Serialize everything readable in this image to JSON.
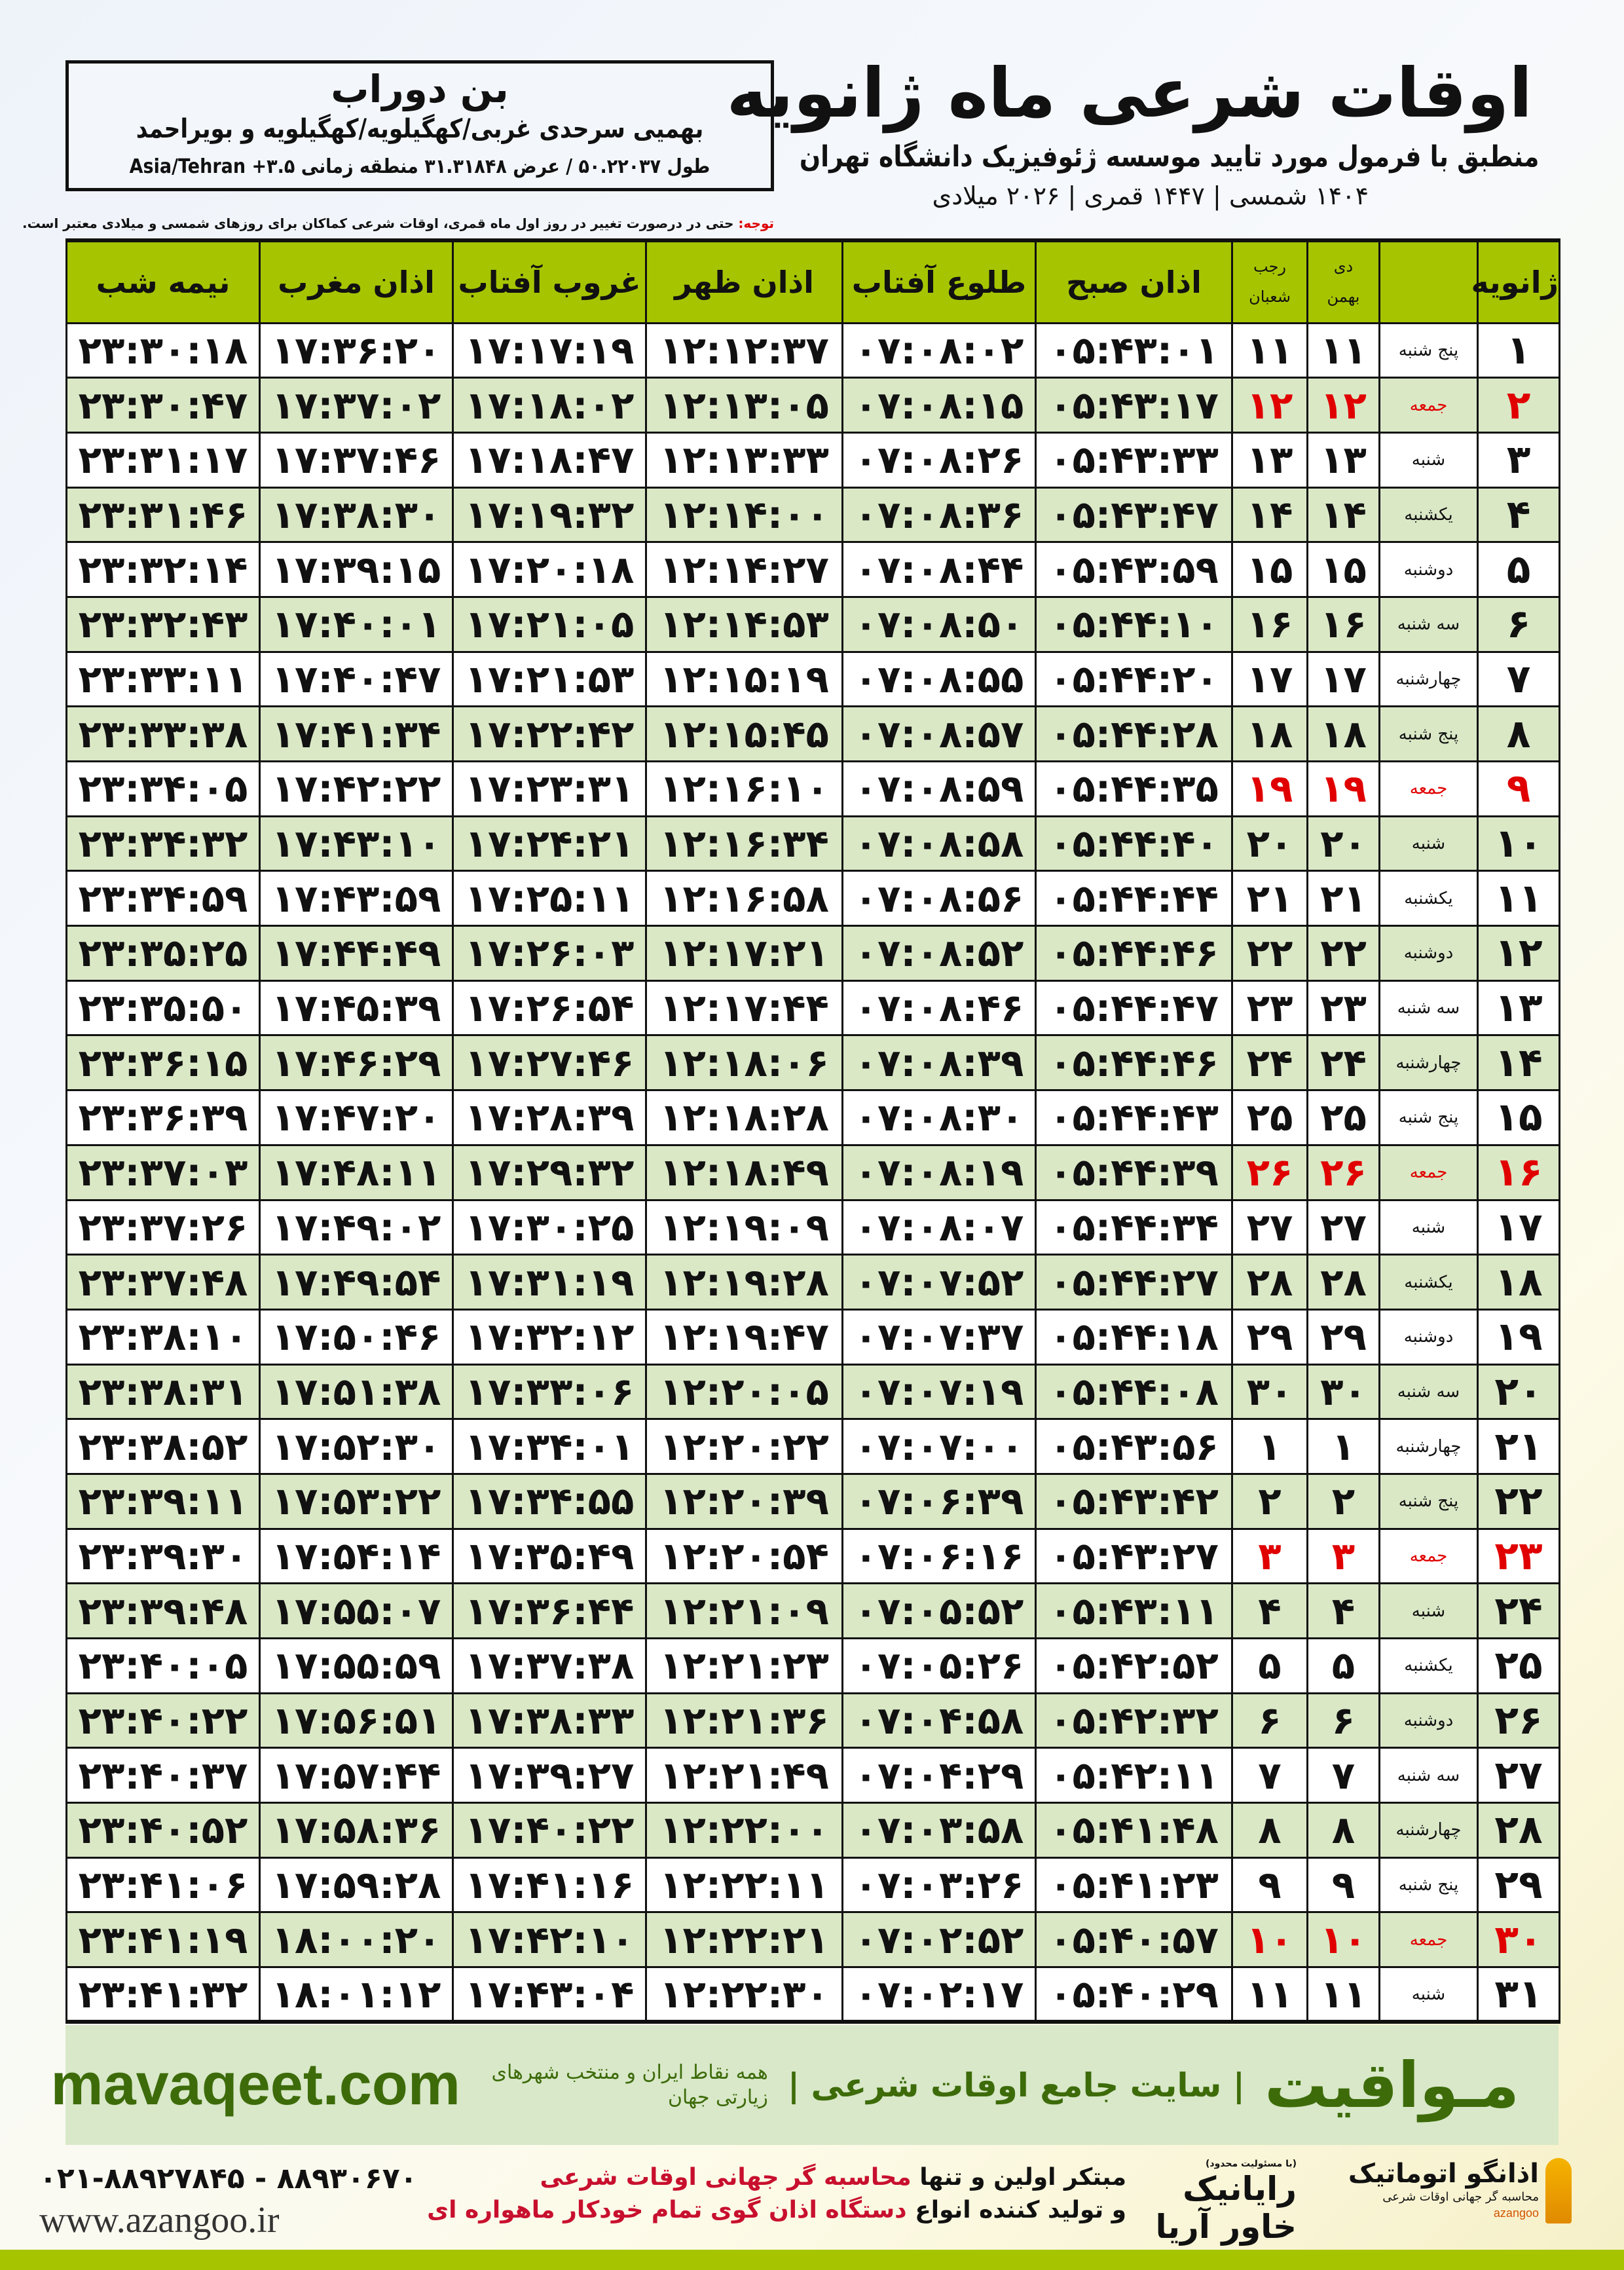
{
  "location": {
    "name": "بن دوراب",
    "region": "بهمیی سرحدی غربی/کهگیلویه/کهگیلویه و بویراحمد",
    "coords": "طول ۵۰.۲۲۰۳۷ / عرض ۳۱.۳۱۸۴۸ منطقه زمانی ۳.۵+ Asia/Tehran"
  },
  "header": {
    "title": "اوقات شرعی ماه ژانویه",
    "subtitle": "منطبق با فرمول مورد تایید موسسه ژئوفیزیک دانشگاه تهران",
    "years": "۱۴۰۴ شمسی | ۱۴۴۷ قمری | ۲۰۲۶ میلادی"
  },
  "note": {
    "label": "توجه:",
    "text": " حتی در درصورت تغییر در روز اول ماه قمری، اوقات شرعی کماکان برای روزهای شمسی و میلادی معتبر است."
  },
  "table": {
    "headers": {
      "month": "ژانویه",
      "dey": "دی",
      "bahman": "بهمن",
      "rajab": "رجب",
      "shaban": "شعبان",
      "sobh": "اذان صبح",
      "tolo": "طلوع آفتاب",
      "zohr": "اذان ظهر",
      "ghoroob": "غروب آفتاب",
      "maghreb": "اذان مغرب",
      "nimeh": "نیمه شب"
    },
    "friday_color": "#e00000",
    "rows": [
      [
        "۱",
        "پنج شنبه",
        "۱۱",
        "۱۱",
        "۰۵:۴۳:۰۱",
        "۰۷:۰۸:۰۲",
        "۱۲:۱۲:۳۷",
        "۱۷:۱۷:۱۹",
        "۱۷:۳۶:۲۰",
        "۲۳:۳۰:۱۸"
      ],
      [
        "۲",
        "جمعه",
        "۱۲",
        "۱۲",
        "۰۵:۴۳:۱۷",
        "۰۷:۰۸:۱۵",
        "۱۲:۱۳:۰۵",
        "۱۷:۱۸:۰۲",
        "۱۷:۳۷:۰۲",
        "۲۳:۳۰:۴۷"
      ],
      [
        "۳",
        "شنبه",
        "۱۳",
        "۱۳",
        "۰۵:۴۳:۳۳",
        "۰۷:۰۸:۲۶",
        "۱۲:۱۳:۳۳",
        "۱۷:۱۸:۴۷",
        "۱۷:۳۷:۴۶",
        "۲۳:۳۱:۱۷"
      ],
      [
        "۴",
        "یکشنبه",
        "۱۴",
        "۱۴",
        "۰۵:۴۳:۴۷",
        "۰۷:۰۸:۳۶",
        "۱۲:۱۴:۰۰",
        "۱۷:۱۹:۳۲",
        "۱۷:۳۸:۳۰",
        "۲۳:۳۱:۴۶"
      ],
      [
        "۵",
        "دوشنبه",
        "۱۵",
        "۱۵",
        "۰۵:۴۳:۵۹",
        "۰۷:۰۸:۴۴",
        "۱۲:۱۴:۲۷",
        "۱۷:۲۰:۱۸",
        "۱۷:۳۹:۱۵",
        "۲۳:۳۲:۱۴"
      ],
      [
        "۶",
        "سه شنبه",
        "۱۶",
        "۱۶",
        "۰۵:۴۴:۱۰",
        "۰۷:۰۸:۵۰",
        "۱۲:۱۴:۵۳",
        "۱۷:۲۱:۰۵",
        "۱۷:۴۰:۰۱",
        "۲۳:۳۲:۴۳"
      ],
      [
        "۷",
        "چهارشنبه",
        "۱۷",
        "۱۷",
        "۰۵:۴۴:۲۰",
        "۰۷:۰۸:۵۵",
        "۱۲:۱۵:۱۹",
        "۱۷:۲۱:۵۳",
        "۱۷:۴۰:۴۷",
        "۲۳:۳۳:۱۱"
      ],
      [
        "۸",
        "پنج شنبه",
        "۱۸",
        "۱۸",
        "۰۵:۴۴:۲۸",
        "۰۷:۰۸:۵۷",
        "۱۲:۱۵:۴۵",
        "۱۷:۲۲:۴۲",
        "۱۷:۴۱:۳۴",
        "۲۳:۳۳:۳۸"
      ],
      [
        "۹",
        "جمعه",
        "۱۹",
        "۱۹",
        "۰۵:۴۴:۳۵",
        "۰۷:۰۸:۵۹",
        "۱۲:۱۶:۱۰",
        "۱۷:۲۳:۳۱",
        "۱۷:۴۲:۲۲",
        "۲۳:۳۴:۰۵"
      ],
      [
        "۱۰",
        "شنبه",
        "۲۰",
        "۲۰",
        "۰۵:۴۴:۴۰",
        "۰۷:۰۸:۵۸",
        "۱۲:۱۶:۳۴",
        "۱۷:۲۴:۲۱",
        "۱۷:۴۳:۱۰",
        "۲۳:۳۴:۳۲"
      ],
      [
        "۱۱",
        "یکشنبه",
        "۲۱",
        "۲۱",
        "۰۵:۴۴:۴۴",
        "۰۷:۰۸:۵۶",
        "۱۲:۱۶:۵۸",
        "۱۷:۲۵:۱۱",
        "۱۷:۴۳:۵۹",
        "۲۳:۳۴:۵۹"
      ],
      [
        "۱۲",
        "دوشنبه",
        "۲۲",
        "۲۲",
        "۰۵:۴۴:۴۶",
        "۰۷:۰۸:۵۲",
        "۱۲:۱۷:۲۱",
        "۱۷:۲۶:۰۳",
        "۱۷:۴۴:۴۹",
        "۲۳:۳۵:۲۵"
      ],
      [
        "۱۳",
        "سه شنبه",
        "۲۳",
        "۲۳",
        "۰۵:۴۴:۴۷",
        "۰۷:۰۸:۴۶",
        "۱۲:۱۷:۴۴",
        "۱۷:۲۶:۵۴",
        "۱۷:۴۵:۳۹",
        "۲۳:۳۵:۵۰"
      ],
      [
        "۱۴",
        "چهارشنبه",
        "۲۴",
        "۲۴",
        "۰۵:۴۴:۴۶",
        "۰۷:۰۸:۳۹",
        "۱۲:۱۸:۰۶",
        "۱۷:۲۷:۴۶",
        "۱۷:۴۶:۲۹",
        "۲۳:۳۶:۱۵"
      ],
      [
        "۱۵",
        "پنج شنبه",
        "۲۵",
        "۲۵",
        "۰۵:۴۴:۴۳",
        "۰۷:۰۸:۳۰",
        "۱۲:۱۸:۲۸",
        "۱۷:۲۸:۳۹",
        "۱۷:۴۷:۲۰",
        "۲۳:۳۶:۳۹"
      ],
      [
        "۱۶",
        "جمعه",
        "۲۶",
        "۲۶",
        "۰۵:۴۴:۳۹",
        "۰۷:۰۸:۱۹",
        "۱۲:۱۸:۴۹",
        "۱۷:۲۹:۳۲",
        "۱۷:۴۸:۱۱",
        "۲۳:۳۷:۰۳"
      ],
      [
        "۱۷",
        "شنبه",
        "۲۷",
        "۲۷",
        "۰۵:۴۴:۳۴",
        "۰۷:۰۸:۰۷",
        "۱۲:۱۹:۰۹",
        "۱۷:۳۰:۲۵",
        "۱۷:۴۹:۰۲",
        "۲۳:۳۷:۲۶"
      ],
      [
        "۱۸",
        "یکشنبه",
        "۲۸",
        "۲۸",
        "۰۵:۴۴:۲۷",
        "۰۷:۰۷:۵۲",
        "۱۲:۱۹:۲۸",
        "۱۷:۳۱:۱۹",
        "۱۷:۴۹:۵۴",
        "۲۳:۳۷:۴۸"
      ],
      [
        "۱۹",
        "دوشنبه",
        "۲۹",
        "۲۹",
        "۰۵:۴۴:۱۸",
        "۰۷:۰۷:۳۷",
        "۱۲:۱۹:۴۷",
        "۱۷:۳۲:۱۲",
        "۱۷:۵۰:۴۶",
        "۲۳:۳۸:۱۰"
      ],
      [
        "۲۰",
        "سه شنبه",
        "۳۰",
        "۳۰",
        "۰۵:۴۴:۰۸",
        "۰۷:۰۷:۱۹",
        "۱۲:۲۰:۰۵",
        "۱۷:۳۳:۰۶",
        "۱۷:۵۱:۳۸",
        "۲۳:۳۸:۳۱"
      ],
      [
        "۲۱",
        "چهارشنبه",
        "۱",
        "۱",
        "۰۵:۴۳:۵۶",
        "۰۷:۰۷:۰۰",
        "۱۲:۲۰:۲۲",
        "۱۷:۳۴:۰۱",
        "۱۷:۵۲:۳۰",
        "۲۳:۳۸:۵۲"
      ],
      [
        "۲۲",
        "پنج شنبه",
        "۲",
        "۲",
        "۰۵:۴۳:۴۲",
        "۰۷:۰۶:۳۹",
        "۱۲:۲۰:۳۹",
        "۱۷:۳۴:۵۵",
        "۱۷:۵۳:۲۲",
        "۲۳:۳۹:۱۱"
      ],
      [
        "۲۳",
        "جمعه",
        "۳",
        "۳",
        "۰۵:۴۳:۲۷",
        "۰۷:۰۶:۱۶",
        "۱۲:۲۰:۵۴",
        "۱۷:۳۵:۴۹",
        "۱۷:۵۴:۱۴",
        "۲۳:۳۹:۳۰"
      ],
      [
        "۲۴",
        "شنبه",
        "۴",
        "۴",
        "۰۵:۴۳:۱۱",
        "۰۷:۰۵:۵۲",
        "۱۲:۲۱:۰۹",
        "۱۷:۳۶:۴۴",
        "۱۷:۵۵:۰۷",
        "۲۳:۳۹:۴۸"
      ],
      [
        "۲۵",
        "یکشنبه",
        "۵",
        "۵",
        "۰۵:۴۲:۵۲",
        "۰۷:۰۵:۲۶",
        "۱۲:۲۱:۲۳",
        "۱۷:۳۷:۳۸",
        "۱۷:۵۵:۵۹",
        "۲۳:۴۰:۰۵"
      ],
      [
        "۲۶",
        "دوشنبه",
        "۶",
        "۶",
        "۰۵:۴۲:۳۲",
        "۰۷:۰۴:۵۸",
        "۱۲:۲۱:۳۶",
        "۱۷:۳۸:۳۳",
        "۱۷:۵۶:۵۱",
        "۲۳:۴۰:۲۲"
      ],
      [
        "۲۷",
        "سه شنبه",
        "۷",
        "۷",
        "۰۵:۴۲:۱۱",
        "۰۷:۰۴:۲۹",
        "۱۲:۲۱:۴۹",
        "۱۷:۳۹:۲۷",
        "۱۷:۵۷:۴۴",
        "۲۳:۴۰:۳۷"
      ],
      [
        "۲۸",
        "چهارشنبه",
        "۸",
        "۸",
        "۰۵:۴۱:۴۸",
        "۰۷:۰۳:۵۸",
        "۱۲:۲۲:۰۰",
        "۱۷:۴۰:۲۲",
        "۱۷:۵۸:۳۶",
        "۲۳:۴۰:۵۲"
      ],
      [
        "۲۹",
        "پنج شنبه",
        "۹",
        "۹",
        "۰۵:۴۱:۲۳",
        "۰۷:۰۳:۲۶",
        "۱۲:۲۲:۱۱",
        "۱۷:۴۱:۱۶",
        "۱۷:۵۹:۲۸",
        "۲۳:۴۱:۰۶"
      ],
      [
        "۳۰",
        "جمعه",
        "۱۰",
        "۱۰",
        "۰۵:۴۰:۵۷",
        "۰۷:۰۲:۵۲",
        "۱۲:۲۲:۲۱",
        "۱۷:۴۲:۱۰",
        "۱۸:۰۰:۲۰",
        "۲۳:۴۱:۱۹"
      ],
      [
        "۳۱",
        "شنبه",
        "۱۱",
        "۱۱",
        "۰۵:۴۰:۲۹",
        "۰۷:۰۲:۱۷",
        "۱۲:۲۲:۳۰",
        "۱۷:۴۳:۰۴",
        "۱۸:۰۱:۱۲",
        "۲۳:۴۱:۳۲"
      ]
    ]
  },
  "banner": {
    "site": "mavaqeet.com",
    "brand": "مـواقیت",
    "slogan": "| سایت جامع اوقات شرعی |",
    "tagline": "همه نقاط ایران و منتخب شهرهای زیارتی جهان"
  },
  "footer": {
    "phone": "۰۲۱-۸۸۹۲۷۸۴۵ - ۸۸۹۳۰۶۷۰",
    "website": "www.azangoo.ir",
    "promo1_a": "مبتکر اولین و تنها ",
    "promo1_b": "محاسبه گر جهانی اوقات شرعی",
    "promo2_a": "و تولید کننده انواع ",
    "promo2_b": "دستگاه اذان گوی تمام خودکار ماهواره ای",
    "logo1_name": "اذانگو اتوماتیک",
    "logo1_sub": "محاسبه گر جهانی اوقات شرعی",
    "logo1_en": "azangoo",
    "logo2_top": "(با مسئولیت محدود)",
    "logo2_name": "رایانیک خاور آریا",
    "accent": "#a6c500"
  }
}
